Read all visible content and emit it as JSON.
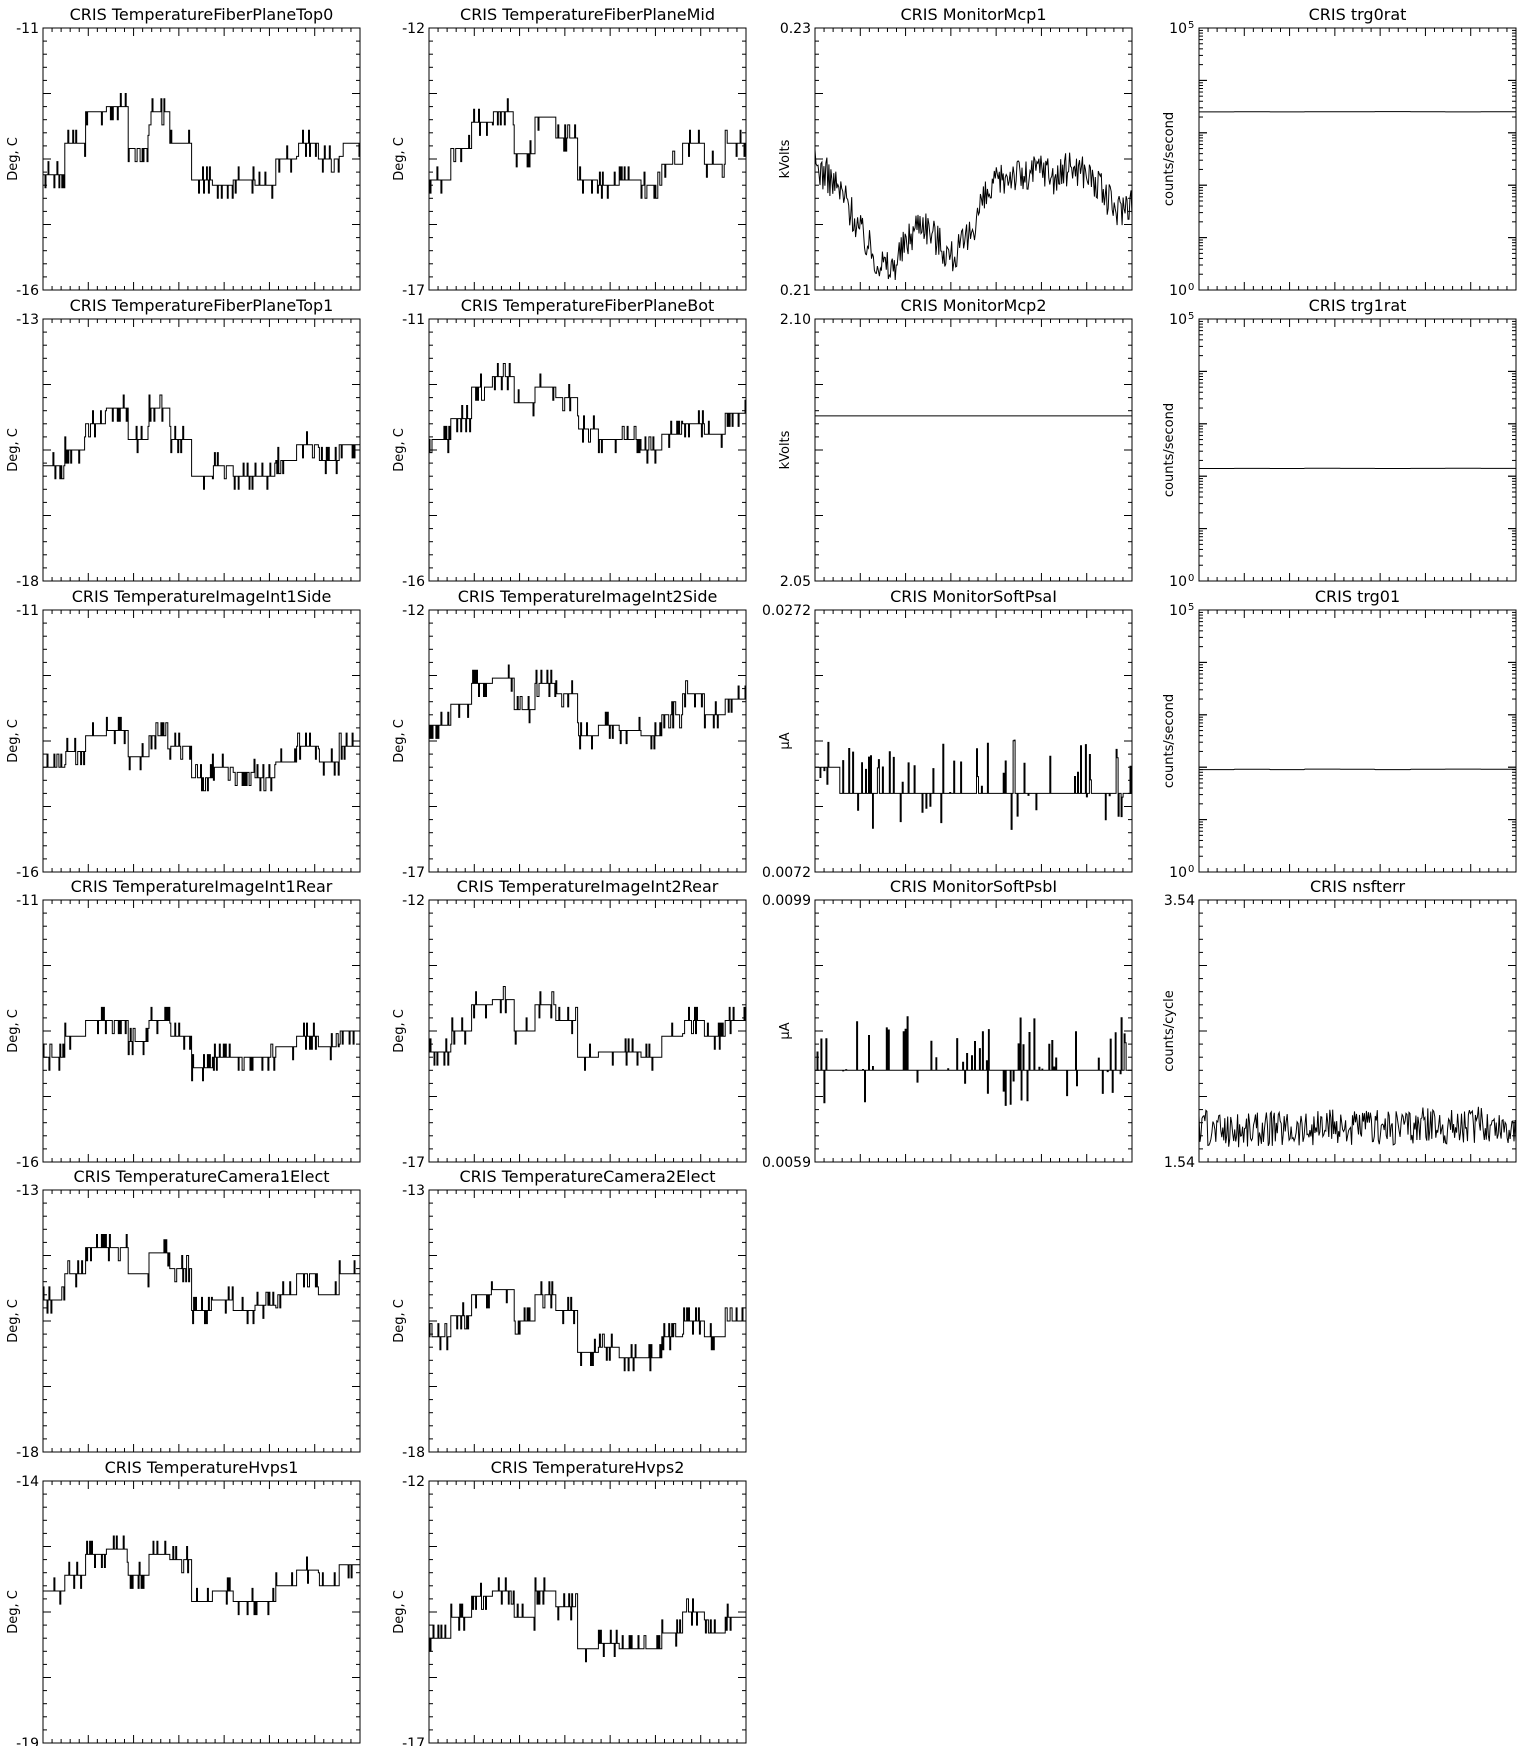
{
  "colors": {
    "background": "#ffffff",
    "ink": "#000000"
  },
  "chart_data": [
    {
      "id": "p00",
      "type": "line",
      "title": "CRIS TemperatureFiberPlaneTop0",
      "ylabel": "Deg, C",
      "ylim": [
        -16,
        -11
      ],
      "ytick_labels": [
        "-16",
        "-11"
      ],
      "scale": "linear",
      "levels": [
        -13.8,
        -13.2,
        -12.6,
        -12.5,
        -13.3,
        -12.6,
        -13.2,
        -13.9,
        -14.0,
        -13.9,
        -14.0,
        -13.5,
        -13.2,
        -13.5,
        -13.2,
        -13.5
      ],
      "y_values_note": ""
    },
    {
      "id": "p01",
      "type": "line",
      "title": "CRIS TemperatureFiberPlaneMid",
      "ylabel": "Deg, C",
      "ylim": [
        -17,
        -12
      ],
      "ytick_labels": [
        "-17",
        "-12"
      ],
      "scale": "linear",
      "levels": [
        -14.9,
        -14.3,
        -13.8,
        -13.6,
        -14.4,
        -13.7,
        -14.1,
        -14.9,
        -15.0,
        -14.9,
        -15.0,
        -14.6,
        -14.2,
        -14.6,
        -14.2,
        -14.5
      ]
    },
    {
      "id": "p02",
      "type": "line",
      "title": "CRIS MonitorMcp1",
      "ylabel": "kVolts",
      "ylim": [
        0.21,
        0.23
      ],
      "ytick_labels": [
        "0.21",
        "0.23"
      ],
      "scale": "linear",
      "levels": [
        0.2195,
        0.2185,
        0.217,
        0.2145,
        0.2125,
        0.2115,
        0.2135,
        0.2155,
        0.214,
        0.2125,
        0.2135,
        0.2165,
        0.218,
        0.219,
        0.2185,
        0.2195,
        0.2185,
        0.2195,
        0.219,
        0.2175,
        0.216,
        0.217
      ]
    },
    {
      "id": "p03",
      "type": "line",
      "title": "CRIS trg0rat",
      "ylabel": "counts/second",
      "ylim": [
        1,
        100000
      ],
      "ytick_labels": [
        "10",
        "10"
      ],
      "ytick_exponents": [
        "0",
        "5"
      ],
      "scale": "log",
      "levels": [
        2500,
        2520,
        2510,
        2530,
        2520,
        2540,
        2520,
        2510,
        2530,
        2520
      ]
    },
    {
      "id": "p10",
      "type": "line",
      "title": "CRIS TemperatureFiberPlaneTop1",
      "ylabel": "Deg, C",
      "ylim": [
        -18,
        -13
      ],
      "ytick_labels": [
        "-18",
        "-13"
      ],
      "scale": "linear",
      "levels": [
        -15.8,
        -15.5,
        -15.0,
        -14.7,
        -15.3,
        -14.7,
        -15.3,
        -16.0,
        -15.8,
        -16.0,
        -16.0,
        -15.7,
        -15.4,
        -15.7,
        -15.4,
        -15.6
      ]
    },
    {
      "id": "p11",
      "type": "line",
      "title": "CRIS TemperatureFiberPlaneBot",
      "ylabel": "Deg, C",
      "ylim": [
        -16,
        -11
      ],
      "ytick_labels": [
        "-16",
        "-11"
      ],
      "scale": "linear",
      "levels": [
        -13.3,
        -12.9,
        -12.3,
        -12.1,
        -12.6,
        -12.3,
        -12.5,
        -13.1,
        -13.3,
        -13.3,
        -13.5,
        -13.2,
        -13.0,
        -13.2,
        -12.8,
        -13.0
      ]
    },
    {
      "id": "p12",
      "type": "line",
      "title": "CRIS MonitorMcp2",
      "ylabel": "kVolts",
      "ylim": [
        2.05,
        2.1
      ],
      "ytick_labels": [
        "2.05",
        "2.10"
      ],
      "scale": "linear",
      "levels": [
        2.0815,
        2.0815
      ]
    },
    {
      "id": "p13",
      "type": "line",
      "title": "CRIS trg1rat",
      "ylabel": "counts/second",
      "ylim": [
        1,
        100000
      ],
      "ytick_labels": [
        "10",
        "10"
      ],
      "ytick_exponents": [
        "0",
        "5"
      ],
      "scale": "log",
      "levels": [
        140,
        141,
        140,
        142,
        141,
        140,
        141,
        142,
        141,
        140
      ]
    },
    {
      "id": "p20",
      "type": "line",
      "title": "CRIS TemperatureImageInt1Side",
      "ylabel": "Deg, C",
      "ylim": [
        -16,
        -11
      ],
      "ytick_labels": [
        "-16",
        "-11"
      ],
      "scale": "linear",
      "levels": [
        -14.0,
        -13.7,
        -13.4,
        -13.3,
        -13.8,
        -13.4,
        -13.6,
        -14.2,
        -14.0,
        -14.1,
        -14.2,
        -13.9,
        -13.6,
        -13.9,
        -13.6,
        -13.8
      ]
    },
    {
      "id": "p21",
      "type": "line",
      "title": "CRIS TemperatureImageInt2Side",
      "ylabel": "Deg, C",
      "ylim": [
        -17,
        -12
      ],
      "ytick_labels": [
        "-17",
        "-12"
      ],
      "scale": "linear",
      "levels": [
        -14.2,
        -13.8,
        -13.4,
        -13.3,
        -13.9,
        -13.4,
        -13.6,
        -14.4,
        -14.2,
        -14.3,
        -14.4,
        -14.0,
        -13.6,
        -14.0,
        -13.7,
        -13.8
      ]
    },
    {
      "id": "p22",
      "type": "line",
      "title": "CRIS MonitorSoftPsaI",
      "ylabel": "µA",
      "ylim": [
        0.0072,
        0.0272
      ],
      "ytick_labels": [
        "0.0072",
        "0.0272"
      ],
      "scale": "linear",
      "levels": [
        0.0152,
        0.0132,
        0.0132,
        0.0132,
        0.0132,
        0.0132,
        0.0132,
        0.0132,
        0.0132,
        0.0132,
        0.0132,
        0.0132,
        0.0132,
        0.0132
      ]
    },
    {
      "id": "p23",
      "type": "line",
      "title": "CRIS trg01",
      "ylabel": "counts/second",
      "ylim": [
        1,
        100000
      ],
      "ytick_labels": [
        "10",
        "10"
      ],
      "ytick_exponents": [
        "0",
        "5"
      ],
      "scale": "log",
      "levels": [
        90,
        91,
        90,
        92,
        91,
        90,
        91,
        92,
        91,
        90
      ]
    },
    {
      "id": "p30",
      "type": "line",
      "title": "CRIS TemperatureImageInt1Rear",
      "ylabel": "Deg, C",
      "ylim": [
        -16,
        -11
      ],
      "ytick_labels": [
        "-16",
        "-11"
      ],
      "scale": "linear",
      "levels": [
        -14.0,
        -13.6,
        -13.3,
        -13.3,
        -13.7,
        -13.3,
        -13.6,
        -14.2,
        -14.0,
        -14.0,
        -14.0,
        -13.8,
        -13.6,
        -13.8,
        -13.5,
        -13.7
      ]
    },
    {
      "id": "p31",
      "type": "line",
      "title": "CRIS TemperatureImageInt2Rear",
      "ylabel": "Deg, C",
      "ylim": [
        -17,
        -12
      ],
      "ytick_labels": [
        "-17",
        "-12"
      ],
      "scale": "linear",
      "levels": [
        -14.9,
        -14.5,
        -14.0,
        -13.9,
        -14.5,
        -14.0,
        -14.3,
        -15.0,
        -14.9,
        -14.9,
        -15.0,
        -14.6,
        -14.3,
        -14.6,
        -14.3,
        -14.5
      ]
    },
    {
      "id": "p32",
      "type": "line",
      "title": "CRIS MonitorSoftPsbI",
      "ylabel": "µA",
      "ylim": [
        0.0059,
        0.0099
      ],
      "ytick_labels": [
        "0.0059",
        "0.0099"
      ],
      "scale": "linear",
      "levels": [
        0.0073,
        0.0073,
        0.0073,
        0.0073,
        0.0073,
        0.0073,
        0.0073,
        0.0073,
        0.0073,
        0.0073
      ]
    },
    {
      "id": "p33",
      "type": "line",
      "title": "CRIS nsfterr",
      "ylabel": "counts/cycle",
      "ylim": [
        1.54,
        3.54
      ],
      "ytick_labels": [
        "1.54",
        "3.54"
      ],
      "scale": "linear",
      "levels": [
        1.8,
        1.78,
        1.8,
        1.79,
        1.81,
        1.8,
        1.82,
        1.81,
        1.83,
        1.82
      ]
    },
    {
      "id": "p40",
      "type": "line",
      "title": "CRIS TemperatureCamera1Elect",
      "ylabel": "Deg, C",
      "ylim": [
        -18,
        -13
      ],
      "ytick_labels": [
        "-18",
        "-13"
      ],
      "scale": "linear",
      "levels": [
        -15.1,
        -14.6,
        -14.1,
        -14.1,
        -14.6,
        -14.2,
        -14.5,
        -15.3,
        -15.1,
        -15.3,
        -15.2,
        -15.0,
        -14.6,
        -15.0,
        -14.6,
        -14.7
      ]
    },
    {
      "id": "p41",
      "type": "line",
      "title": "CRIS TemperatureCamera2Elect",
      "ylabel": "Deg, C",
      "ylim": [
        -18,
        -13
      ],
      "ytick_labels": [
        "-18",
        "-13"
      ],
      "scale": "linear",
      "levels": [
        -15.8,
        -15.4,
        -15.0,
        -14.9,
        -15.5,
        -15.0,
        -15.3,
        -16.1,
        -16.0,
        -16.2,
        -16.2,
        -15.8,
        -15.5,
        -15.8,
        -15.5,
        -15.7
      ]
    },
    {
      "id": "p50",
      "type": "line",
      "title": "CRIS TemperatureHvps1",
      "ylabel": "Deg, C",
      "ylim": [
        -19,
        -14
      ],
      "ytick_labels": [
        "-19",
        "-14"
      ],
      "scale": "linear",
      "levels": [
        -16.1,
        -15.8,
        -15.4,
        -15.3,
        -15.8,
        -15.4,
        -15.5,
        -16.3,
        -16.1,
        -16.3,
        -16.3,
        -16.0,
        -15.7,
        -16.0,
        -15.6,
        -15.8
      ]
    },
    {
      "id": "p51",
      "type": "line",
      "title": "CRIS TemperatureHvps2",
      "ylabel": "Deg, C",
      "ylim": [
        -17,
        -12
      ],
      "ytick_labels": [
        "-17",
        "-12"
      ],
      "scale": "linear",
      "levels": [
        -15.0,
        -14.6,
        -14.2,
        -14.1,
        -14.6,
        -14.1,
        -14.4,
        -15.2,
        -15.1,
        -15.2,
        -15.2,
        -14.9,
        -14.5,
        -14.9,
        -14.6,
        -14.8
      ]
    }
  ]
}
